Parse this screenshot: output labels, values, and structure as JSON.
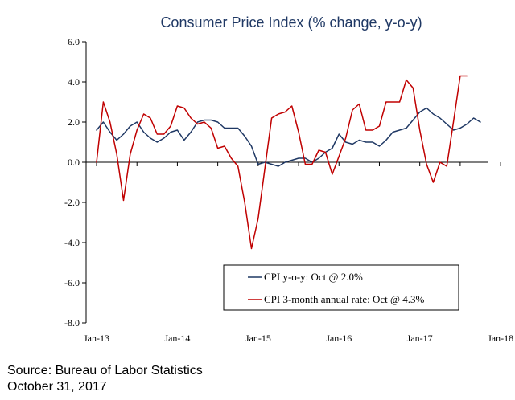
{
  "chart_data": {
    "type": "line",
    "title": "Consumer Price Index (% change, y-o-y)",
    "xlabel": "",
    "ylabel": "",
    "ylim": [
      -8.0,
      6.0
    ],
    "yticks": [
      6.0,
      4.0,
      2.0,
      0.0,
      -2.0,
      -4.0,
      -6.0,
      -8.0
    ],
    "ytick_labels": [
      "6.0",
      "4.0",
      "2.0",
      "0.0",
      "-2.0",
      "-4.0",
      "-6.0",
      "-8.0"
    ],
    "x_start": "2013-01",
    "xtick_labels": [
      "Jan-13",
      "Jan-14",
      "Jan-15",
      "Jan-16",
      "Jan-17",
      "Jan-18"
    ],
    "grid": false,
    "legend_position": "lower-right",
    "series": [
      {
        "name": "CPI y-o-y: Oct @ 2.0%",
        "color": "#1f3864",
        "values": [
          1.6,
          2.0,
          1.5,
          1.1,
          1.4,
          1.8,
          2.0,
          1.5,
          1.2,
          1.0,
          1.2,
          1.5,
          1.6,
          1.1,
          1.5,
          2.0,
          2.1,
          2.1,
          2.0,
          1.7,
          1.7,
          1.7,
          1.3,
          0.8,
          -0.1,
          0.0,
          -0.1,
          -0.2,
          0.0,
          0.1,
          0.2,
          0.2,
          0.0,
          0.2,
          0.5,
          0.7,
          1.4,
          1.0,
          0.9,
          1.1,
          1.0,
          1.0,
          0.8,
          1.1,
          1.5,
          1.6,
          1.7,
          2.1,
          2.5,
          2.7,
          2.4,
          2.2,
          1.9,
          1.6,
          1.7,
          1.9,
          2.2,
          2.0
        ]
      },
      {
        "name": "CPI 3-month annual rate: Oct @ 4.3%",
        "color": "#c00000",
        "values": [
          0.0,
          3.0,
          2.0,
          0.4,
          -1.9,
          0.4,
          1.6,
          2.4,
          2.2,
          1.4,
          1.4,
          1.8,
          2.8,
          2.7,
          2.2,
          1.9,
          2.0,
          1.7,
          0.7,
          0.8,
          0.2,
          -0.2,
          -2.0,
          -4.3,
          -2.8,
          -0.3,
          2.2,
          2.4,
          2.5,
          2.8,
          1.5,
          -0.1,
          -0.1,
          0.6,
          0.5,
          -0.6,
          0.3,
          1.2,
          2.6,
          2.9,
          1.6,
          1.6,
          1.8,
          3.0,
          3.0,
          3.0,
          4.1,
          3.7,
          1.6,
          -0.1,
          -1.0,
          0.0,
          -0.2,
          2.0,
          4.3,
          4.3
        ]
      }
    ]
  },
  "footer": {
    "source": "Source: Bureau of Labor Statistics",
    "date": "October 31, 2017"
  }
}
